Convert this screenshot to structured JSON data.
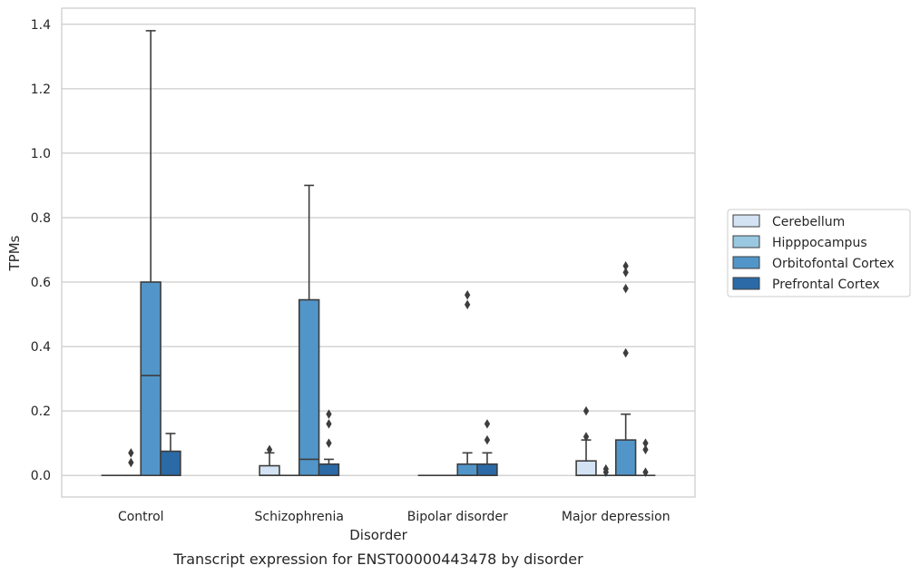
{
  "chart_data": {
    "type": "box",
    "title": "",
    "caption": "Transcript expression for ENST00000443478 by disorder",
    "xlabel": "Disorder",
    "ylabel": "TPMs",
    "ylim": [
      -0.067,
      1.45
    ],
    "yticks": [
      0.0,
      0.2,
      0.4,
      0.6,
      0.8,
      1.0,
      1.2,
      1.4
    ],
    "ytick_labels": [
      "0.0",
      "0.2",
      "0.4",
      "0.6",
      "0.8",
      "1.0",
      "1.2",
      "1.4"
    ],
    "grid": "horizontal",
    "legend_position": "right",
    "categories": [
      "Control",
      "Schizophrenia",
      "Bipolar disorder",
      "Major depression"
    ],
    "series": [
      {
        "name": "Cerebellum",
        "color": "#d3e3f3",
        "boxes": [
          {
            "min": 0,
            "q1": 0,
            "median": 0,
            "q3": 0,
            "max": 0,
            "outliers": []
          },
          {
            "min": 0,
            "q1": 0,
            "median": 0,
            "q3": 0.03,
            "max": 0.07,
            "outliers": [
              0.08
            ]
          },
          {
            "min": 0,
            "q1": 0,
            "median": 0,
            "q3": 0,
            "max": 0,
            "outliers": []
          },
          {
            "min": 0,
            "q1": 0,
            "median": 0,
            "q3": 0.045,
            "max": 0.11,
            "outliers": [
              0.12,
              0.2
            ]
          }
        ]
      },
      {
        "name": "Hipppocampus",
        "color": "#9ac8e1",
        "boxes": [
          {
            "min": 0,
            "q1": 0,
            "median": 0,
            "q3": 0,
            "max": 0,
            "outliers": [
              0.04,
              0.07
            ]
          },
          {
            "min": 0,
            "q1": 0,
            "median": 0,
            "q3": 0,
            "max": 0,
            "outliers": []
          },
          {
            "min": 0,
            "q1": 0,
            "median": 0,
            "q3": 0,
            "max": 0,
            "outliers": []
          },
          {
            "min": 0,
            "q1": 0,
            "median": 0,
            "q3": 0,
            "max": 0,
            "outliers": [
              0.01,
              0.02
            ]
          }
        ]
      },
      {
        "name": "Orbitofontal Cortex",
        "color": "#5296c9",
        "boxes": [
          {
            "min": 0,
            "q1": 0,
            "median": 0.31,
            "q3": 0.6,
            "max": 1.38,
            "outliers": []
          },
          {
            "min": 0,
            "q1": 0,
            "median": 0.05,
            "q3": 0.545,
            "max": 0.9,
            "outliers": []
          },
          {
            "min": 0,
            "q1": 0,
            "median": 0,
            "q3": 0.035,
            "max": 0.07,
            "outliers": [
              0.53,
              0.56
            ]
          },
          {
            "min": 0,
            "q1": 0,
            "median": 0,
            "q3": 0.11,
            "max": 0.19,
            "outliers": [
              0.38,
              0.58,
              0.63,
              0.65
            ]
          }
        ]
      },
      {
        "name": "Prefrontal Cortex",
        "color": "#2b6aa6",
        "boxes": [
          {
            "min": 0,
            "q1": 0,
            "median": 0,
            "q3": 0.075,
            "max": 0.13,
            "outliers": []
          },
          {
            "min": 0,
            "q1": 0,
            "median": 0,
            "q3": 0.035,
            "max": 0.05,
            "outliers": [
              0.1,
              0.16,
              0.19
            ]
          },
          {
            "min": 0,
            "q1": 0,
            "median": 0,
            "q3": 0.035,
            "max": 0.07,
            "outliers": [
              0.11,
              0.16
            ]
          },
          {
            "min": 0,
            "q1": 0,
            "median": 0,
            "q3": 0,
            "max": 0,
            "outliers": [
              0.01,
              0.08,
              0.1
            ]
          }
        ]
      }
    ]
  }
}
